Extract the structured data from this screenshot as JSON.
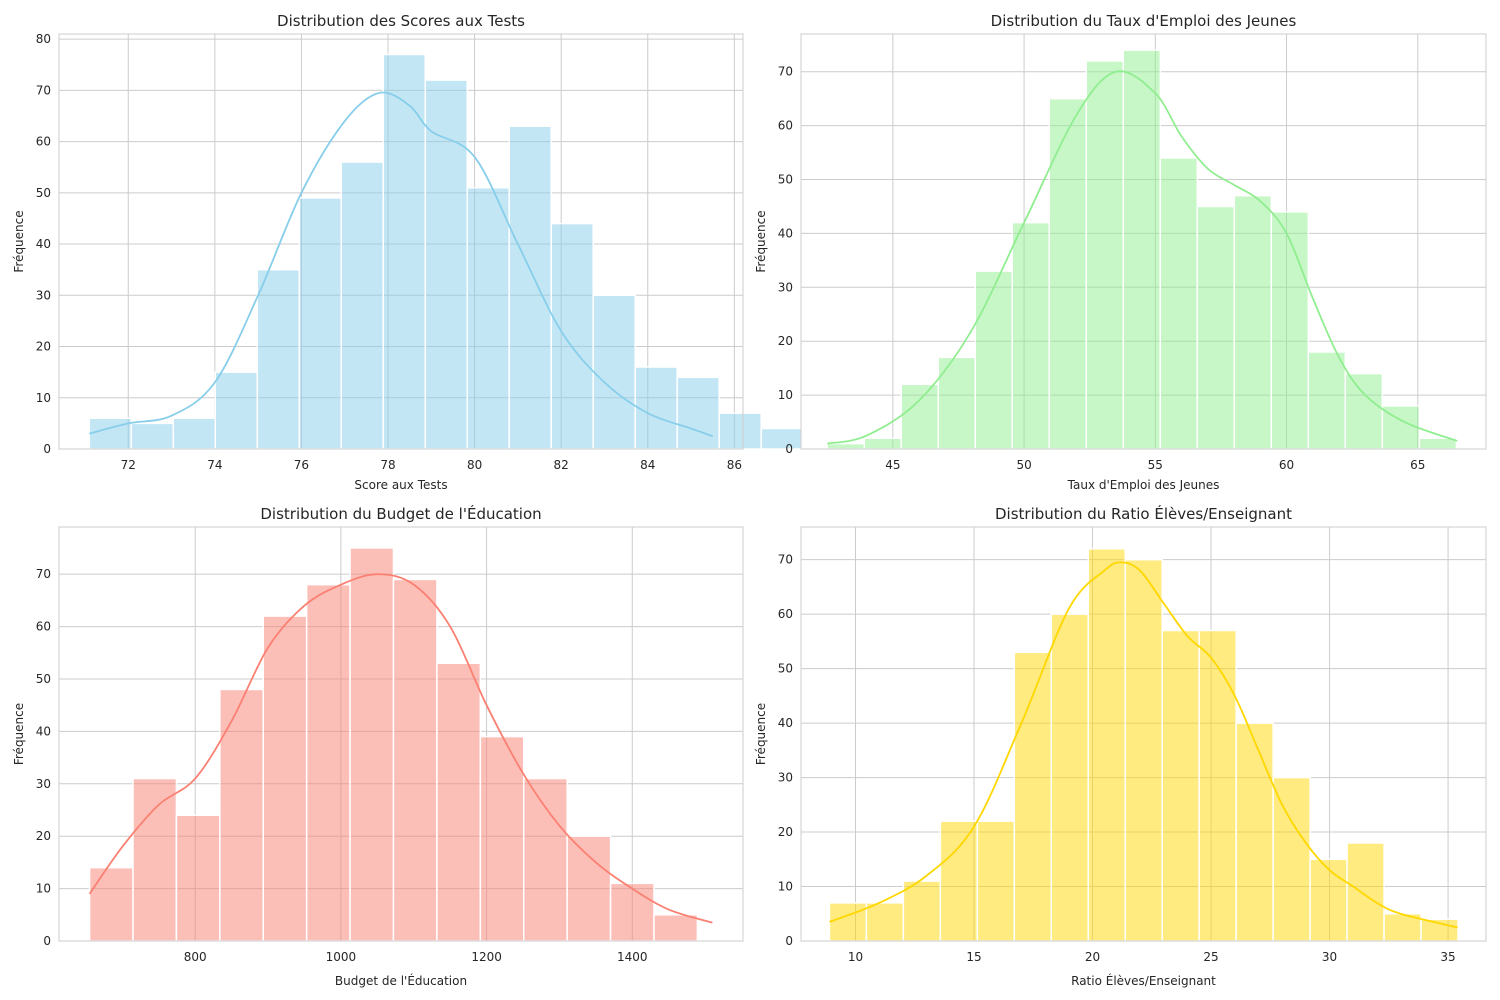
{
  "chart_data": [
    {
      "type": "histogram",
      "title": "Distribution des Scores aux Tests",
      "xlabel": "Score aux Tests",
      "ylabel": "Fréquence",
      "color": "#87ceeb",
      "xlim": [
        70.4,
        86.2
      ],
      "ylim": [
        0,
        81
      ],
      "xticks": [
        72,
        74,
        76,
        78,
        80,
        82,
        84,
        86
      ],
      "yticks": [
        0,
        10,
        20,
        30,
        40,
        50,
        60,
        70,
        80
      ],
      "bin_start": 71.1,
      "bin_width": 0.97,
      "counts": [
        6,
        5,
        6,
        15,
        35,
        49,
        56,
        77,
        72,
        51,
        63,
        44,
        30,
        16,
        14,
        7,
        4
      ],
      "kde": [
        [
          71.1,
          3
        ],
        [
          72,
          5
        ],
        [
          73,
          6.5
        ],
        [
          74,
          13
        ],
        [
          75,
          30
        ],
        [
          76,
          50
        ],
        [
          77,
          64
        ],
        [
          77.8,
          69.5
        ],
        [
          78.5,
          67
        ],
        [
          79,
          62
        ],
        [
          80,
          57
        ],
        [
          81,
          40
        ],
        [
          82,
          23
        ],
        [
          83,
          13
        ],
        [
          84,
          7
        ],
        [
          85,
          4
        ],
        [
          85.5,
          2.5
        ]
      ]
    },
    {
      "type": "histogram",
      "title": "Distribution du Taux d'Emploi des Jeunes",
      "xlabel": "Taux d'Emploi des Jeunes",
      "ylabel": "Fréquence",
      "color": "#90ee90",
      "xlim": [
        41.5,
        67.6
      ],
      "ylim": [
        0,
        77
      ],
      "xticks": [
        45,
        50,
        55,
        60,
        65
      ],
      "yticks": [
        0,
        10,
        20,
        30,
        40,
        50,
        60,
        70
      ],
      "bin_start": 42.5,
      "bin_width": 1.41,
      "counts": [
        1,
        2,
        12,
        17,
        33,
        42,
        65,
        72,
        74,
        54,
        45,
        47,
        44,
        18,
        14,
        8,
        2
      ],
      "kde": [
        [
          42.5,
          1
        ],
        [
          44,
          2.5
        ],
        [
          46,
          9
        ],
        [
          48,
          22
        ],
        [
          50,
          42
        ],
        [
          52,
          62
        ],
        [
          53.5,
          70
        ],
        [
          55,
          66
        ],
        [
          56,
          58
        ],
        [
          57,
          52
        ],
        [
          58,
          49
        ],
        [
          59,
          46
        ],
        [
          60,
          40
        ],
        [
          61,
          28
        ],
        [
          62,
          17
        ],
        [
          63,
          10
        ],
        [
          64.5,
          5
        ],
        [
          66.5,
          1.5
        ]
      ]
    },
    {
      "type": "histogram",
      "title": "Distribution du Budget de l'Éducation",
      "xlabel": "Budget de l'Éducation",
      "ylabel": "Fréquence",
      "color": "#fa8072",
      "xlim": [
        613,
        1552
      ],
      "ylim": [
        0,
        79
      ],
      "xticks": [
        800,
        1000,
        1200,
        1400
      ],
      "yticks": [
        0,
        10,
        20,
        30,
        40,
        50,
        60,
        70
      ],
      "bin_start": 655,
      "bin_width": 59.6,
      "counts": [
        14,
        31,
        24,
        48,
        62,
        68,
        75,
        69,
        53,
        39,
        31,
        20,
        11,
        5
      ],
      "kde": [
        [
          655,
          9
        ],
        [
          700,
          18
        ],
        [
          750,
          26
        ],
        [
          800,
          31
        ],
        [
          850,
          42
        ],
        [
          900,
          56
        ],
        [
          950,
          64
        ],
        [
          1000,
          68
        ],
        [
          1050,
          70
        ],
        [
          1100,
          68
        ],
        [
          1150,
          60
        ],
        [
          1200,
          45
        ],
        [
          1250,
          32
        ],
        [
          1300,
          22
        ],
        [
          1350,
          15
        ],
        [
          1400,
          10
        ],
        [
          1450,
          6
        ],
        [
          1510,
          3.5
        ]
      ]
    },
    {
      "type": "histogram",
      "title": "Distribution du Ratio Élèves/Enseignant",
      "xlabel": "Ratio Élèves/Enseignant",
      "ylabel": "Fréquence",
      "color": "#ffd700",
      "xlim": [
        7.7,
        36.6
      ],
      "ylim": [
        0,
        76
      ],
      "xticks": [
        10,
        15,
        20,
        25,
        30,
        35
      ],
      "yticks": [
        0,
        10,
        20,
        30,
        40,
        50,
        60,
        70
      ],
      "bin_start": 8.9,
      "bin_width": 1.56,
      "counts": [
        7,
        7,
        11,
        22,
        22,
        53,
        60,
        72,
        70,
        57,
        57,
        40,
        30,
        15,
        18,
        5,
        4
      ],
      "kde": [
        [
          8.9,
          3.5
        ],
        [
          11,
          7
        ],
        [
          13,
          12
        ],
        [
          15,
          21
        ],
        [
          17,
          40
        ],
        [
          19,
          61
        ],
        [
          20.5,
          68
        ],
        [
          21.2,
          69.5
        ],
        [
          22,
          68
        ],
        [
          23,
          62
        ],
        [
          24,
          56
        ],
        [
          25,
          52
        ],
        [
          26,
          45
        ],
        [
          27,
          35
        ],
        [
          28,
          25
        ],
        [
          29,
          18
        ],
        [
          30,
          13
        ],
        [
          31,
          10
        ],
        [
          32,
          7
        ],
        [
          33,
          5
        ],
        [
          35.4,
          2.5
        ]
      ]
    }
  ]
}
